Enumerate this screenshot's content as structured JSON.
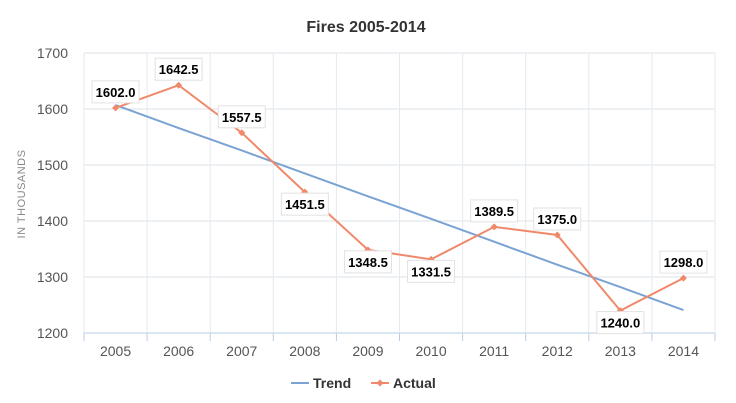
{
  "chart_data": {
    "type": "line",
    "title": "Fires 2005-2014",
    "ylabel": "IN THOUSANDS",
    "xlabel": "",
    "categories": [
      "2005",
      "2006",
      "2007",
      "2008",
      "2009",
      "2010",
      "2011",
      "2012",
      "2013",
      "2014"
    ],
    "ylim": [
      1200,
      1700
    ],
    "yticks": [
      1200,
      1300,
      1400,
      1500,
      1600,
      1700
    ],
    "grid": true,
    "legend_position": "bottom",
    "series": [
      {
        "name": "Trend",
        "color": "#7aa3d4",
        "values": [
          1607,
          1566,
          1526,
          1485,
          1444,
          1404,
          1363,
          1322,
          1282,
          1241
        ]
      },
      {
        "name": "Actual",
        "color": "#f0896a",
        "values": [
          1602.0,
          1642.5,
          1557.5,
          1451.5,
          1348.5,
          1331.5,
          1389.5,
          1375.0,
          1240.0,
          1298.0
        ],
        "data_labels": [
          "1602.0",
          "1642.5",
          "1557.5",
          "1451.5",
          "1348.5",
          "1331.5",
          "1389.5",
          "1375.0",
          "1240.0",
          "1298.0"
        ]
      }
    ]
  }
}
